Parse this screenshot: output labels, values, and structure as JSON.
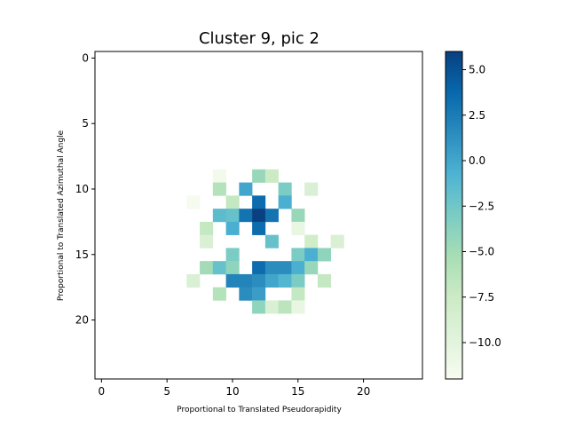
{
  "chart_data": {
    "type": "heatmap",
    "title": "Cluster 9, pic 2",
    "xlabel": "Proportional to Translated Pseudorapidity",
    "ylabel": "Proportional to Translated Azimuthal Angle",
    "grid_size": 25,
    "xlim": [
      -0.5,
      24.5
    ],
    "ylim": [
      24.5,
      -0.5
    ],
    "xticks": [
      0,
      5,
      10,
      15,
      20
    ],
    "yticks": [
      0,
      5,
      10,
      15,
      20
    ],
    "colorbar": {
      "colormap": "GnBu",
      "range": [
        -12,
        6
      ],
      "ticks": [
        5.0,
        2.5,
        0.0,
        -2.5,
        -5.0,
        -7.5,
        -10.0
      ],
      "tick_labels": [
        "5.0",
        "2.5",
        "0.0",
        "−2.5",
        "−5.0",
        "−7.5",
        "−10.0"
      ]
    },
    "cells": [
      {
        "x": 9,
        "y": 9,
        "v": -11.5
      },
      {
        "x": 12,
        "y": 9,
        "v": -4.5
      },
      {
        "x": 13,
        "y": 9,
        "v": -7.5
      },
      {
        "x": 9,
        "y": 10,
        "v": -6
      },
      {
        "x": 11,
        "y": 10,
        "v": 0
      },
      {
        "x": 14,
        "y": 10,
        "v": -3
      },
      {
        "x": 16,
        "y": 10,
        "v": -9
      },
      {
        "x": 7,
        "y": 11,
        "v": -11.8
      },
      {
        "x": 10,
        "y": 11,
        "v": -7
      },
      {
        "x": 12,
        "y": 11,
        "v": 3.5
      },
      {
        "x": 14,
        "y": 11,
        "v": -0.5
      },
      {
        "x": 9,
        "y": 12,
        "v": -1.5
      },
      {
        "x": 10,
        "y": 12,
        "v": -2
      },
      {
        "x": 11,
        "y": 12,
        "v": 3
      },
      {
        "x": 12,
        "y": 12,
        "v": 6
      },
      {
        "x": 13,
        "y": 12,
        "v": 3
      },
      {
        "x": 15,
        "y": 12,
        "v": -4.5
      },
      {
        "x": 8,
        "y": 13,
        "v": -7
      },
      {
        "x": 10,
        "y": 13,
        "v": -0.5
      },
      {
        "x": 12,
        "y": 13,
        "v": 3.5
      },
      {
        "x": 15,
        "y": 13,
        "v": -10.5
      },
      {
        "x": 8,
        "y": 14,
        "v": -9
      },
      {
        "x": 13,
        "y": 14,
        "v": -2
      },
      {
        "x": 16,
        "y": 14,
        "v": -8
      },
      {
        "x": 18,
        "y": 14,
        "v": -9
      },
      {
        "x": 10,
        "y": 15,
        "v": -3
      },
      {
        "x": 15,
        "y": 15,
        "v": -3
      },
      {
        "x": 16,
        "y": 15,
        "v": -0.5
      },
      {
        "x": 17,
        "y": 15,
        "v": -4
      },
      {
        "x": 8,
        "y": 16,
        "v": -5
      },
      {
        "x": 9,
        "y": 16,
        "v": -2
      },
      {
        "x": 10,
        "y": 16,
        "v": -4
      },
      {
        "x": 12,
        "y": 16,
        "v": 3.5
      },
      {
        "x": 13,
        "y": 16,
        "v": 1.5
      },
      {
        "x": 14,
        "y": 16,
        "v": 1.5
      },
      {
        "x": 15,
        "y": 16,
        "v": -0.5
      },
      {
        "x": 16,
        "y": 16,
        "v": -4.5
      },
      {
        "x": 7,
        "y": 17,
        "v": -9
      },
      {
        "x": 10,
        "y": 17,
        "v": 2
      },
      {
        "x": 11,
        "y": 17,
        "v": 2
      },
      {
        "x": 12,
        "y": 17,
        "v": 1.5
      },
      {
        "x": 13,
        "y": 17,
        "v": 0
      },
      {
        "x": 14,
        "y": 17,
        "v": -1
      },
      {
        "x": 15,
        "y": 17,
        "v": -3
      },
      {
        "x": 17,
        "y": 17,
        "v": -7
      },
      {
        "x": 9,
        "y": 18,
        "v": -6
      },
      {
        "x": 11,
        "y": 18,
        "v": 1.5
      },
      {
        "x": 12,
        "y": 18,
        "v": 0.5
      },
      {
        "x": 15,
        "y": 18,
        "v": -7
      },
      {
        "x": 12,
        "y": 19,
        "v": -4
      },
      {
        "x": 13,
        "y": 19,
        "v": -9
      },
      {
        "x": 14,
        "y": 19,
        "v": -6.5
      },
      {
        "x": 15,
        "y": 19,
        "v": -10.5
      }
    ]
  }
}
